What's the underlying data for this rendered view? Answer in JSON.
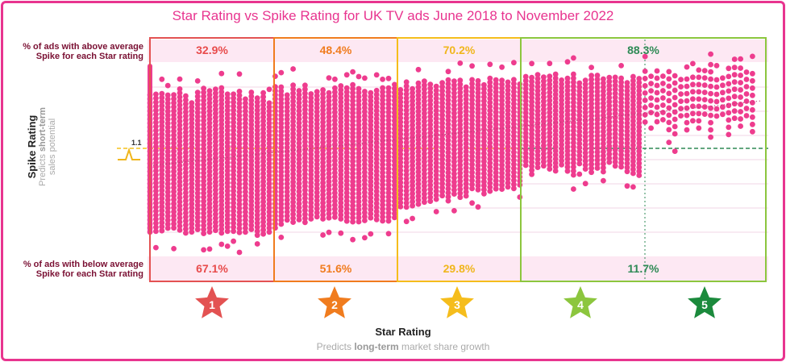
{
  "title": "Star Rating vs Spike Rating for UK TV ads June 2018 to November 2022",
  "band_labels": {
    "above": "% of ads with above average Spike for each Star rating",
    "below": "% of ads with below average Spike for each Star rating"
  },
  "y_axis": {
    "label": "Spike Rating",
    "sub_part1": "Predicts ",
    "sub_bold": "short-term",
    "sub_part2": "sales potential",
    "reference_label": "1.1",
    "reference_value": 1.1
  },
  "x_axis": {
    "label": "Star Rating",
    "sub_part1": "Predicts ",
    "sub_bold": "long-term",
    "sub_part2": " market share growth"
  },
  "colors": {
    "accent": "#e8348f",
    "dots": "#ee3c8e",
    "band_fill": "#fde8f3",
    "grid": "#f2d6e4",
    "trend": "#b04070"
  },
  "chart_data": {
    "type": "scatter",
    "title": "Star Rating vs Spike Rating for UK TV ads June 2018 to November 2022",
    "xlabel": "Star Rating",
    "ylabel": "Spike Rating",
    "reference_line": 1.1,
    "groups": [
      {
        "star": "1",
        "color": "#e35252",
        "above_pct": "32.9%",
        "below_pct": "67.1%"
      },
      {
        "star": "2",
        "color": "#f07c1e",
        "above_pct": "48.4%",
        "below_pct": "51.6%"
      },
      {
        "star": "3",
        "color": "#f5bd1c",
        "above_pct": "70.2%",
        "below_pct": "29.8%"
      },
      {
        "star": "4",
        "color": "#8cc63e",
        "above_pct": "88.3%",
        "below_pct": "11.7%"
      },
      {
        "star": "5",
        "color": "#1b8a3c"
      }
    ],
    "trend": "linear, increasing"
  }
}
